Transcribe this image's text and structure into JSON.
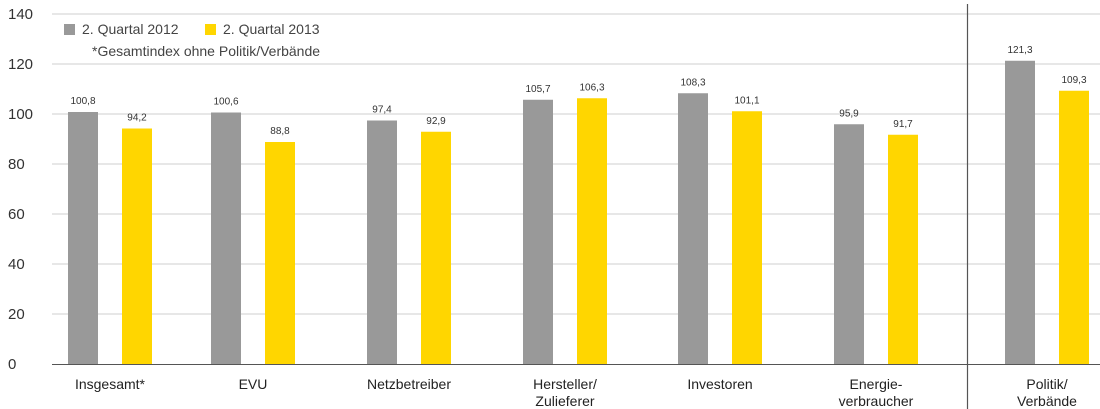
{
  "chart_data": {
    "type": "bar",
    "categories": [
      "Insgesamt*",
      "EVU",
      "Netzbetreiber",
      "Hersteller/\nZulieferer",
      "Investoren",
      "Energie-\nverbraucher",
      "Politik/\nVerbände"
    ],
    "series": [
      {
        "name": "2. Quartal 2012",
        "color": "#999999",
        "values": [
          100.8,
          100.6,
          97.4,
          105.7,
          108.3,
          95.9,
          121.3
        ],
        "labels": [
          "100,8",
          "100,6",
          "97,4",
          "105,7",
          "108,3",
          "95,9",
          "121,3"
        ]
      },
      {
        "name": "2. Quartal 2013",
        "color": "#ffd600",
        "values": [
          94.2,
          88.8,
          92.9,
          106.3,
          101.1,
          91.7,
          109.3
        ],
        "labels": [
          "94,2",
          "88,8",
          "92,9",
          "106,3",
          "101,1",
          "91,7",
          "109,3"
        ]
      }
    ],
    "ylim": [
      0,
      140
    ],
    "yticks": [
      0,
      20,
      40,
      60,
      80,
      100,
      120,
      140
    ],
    "grid": true,
    "legend_position": "top-left",
    "note": "*Gesamtindex ohne Politik/Verbände",
    "separator_before_category": 6
  }
}
